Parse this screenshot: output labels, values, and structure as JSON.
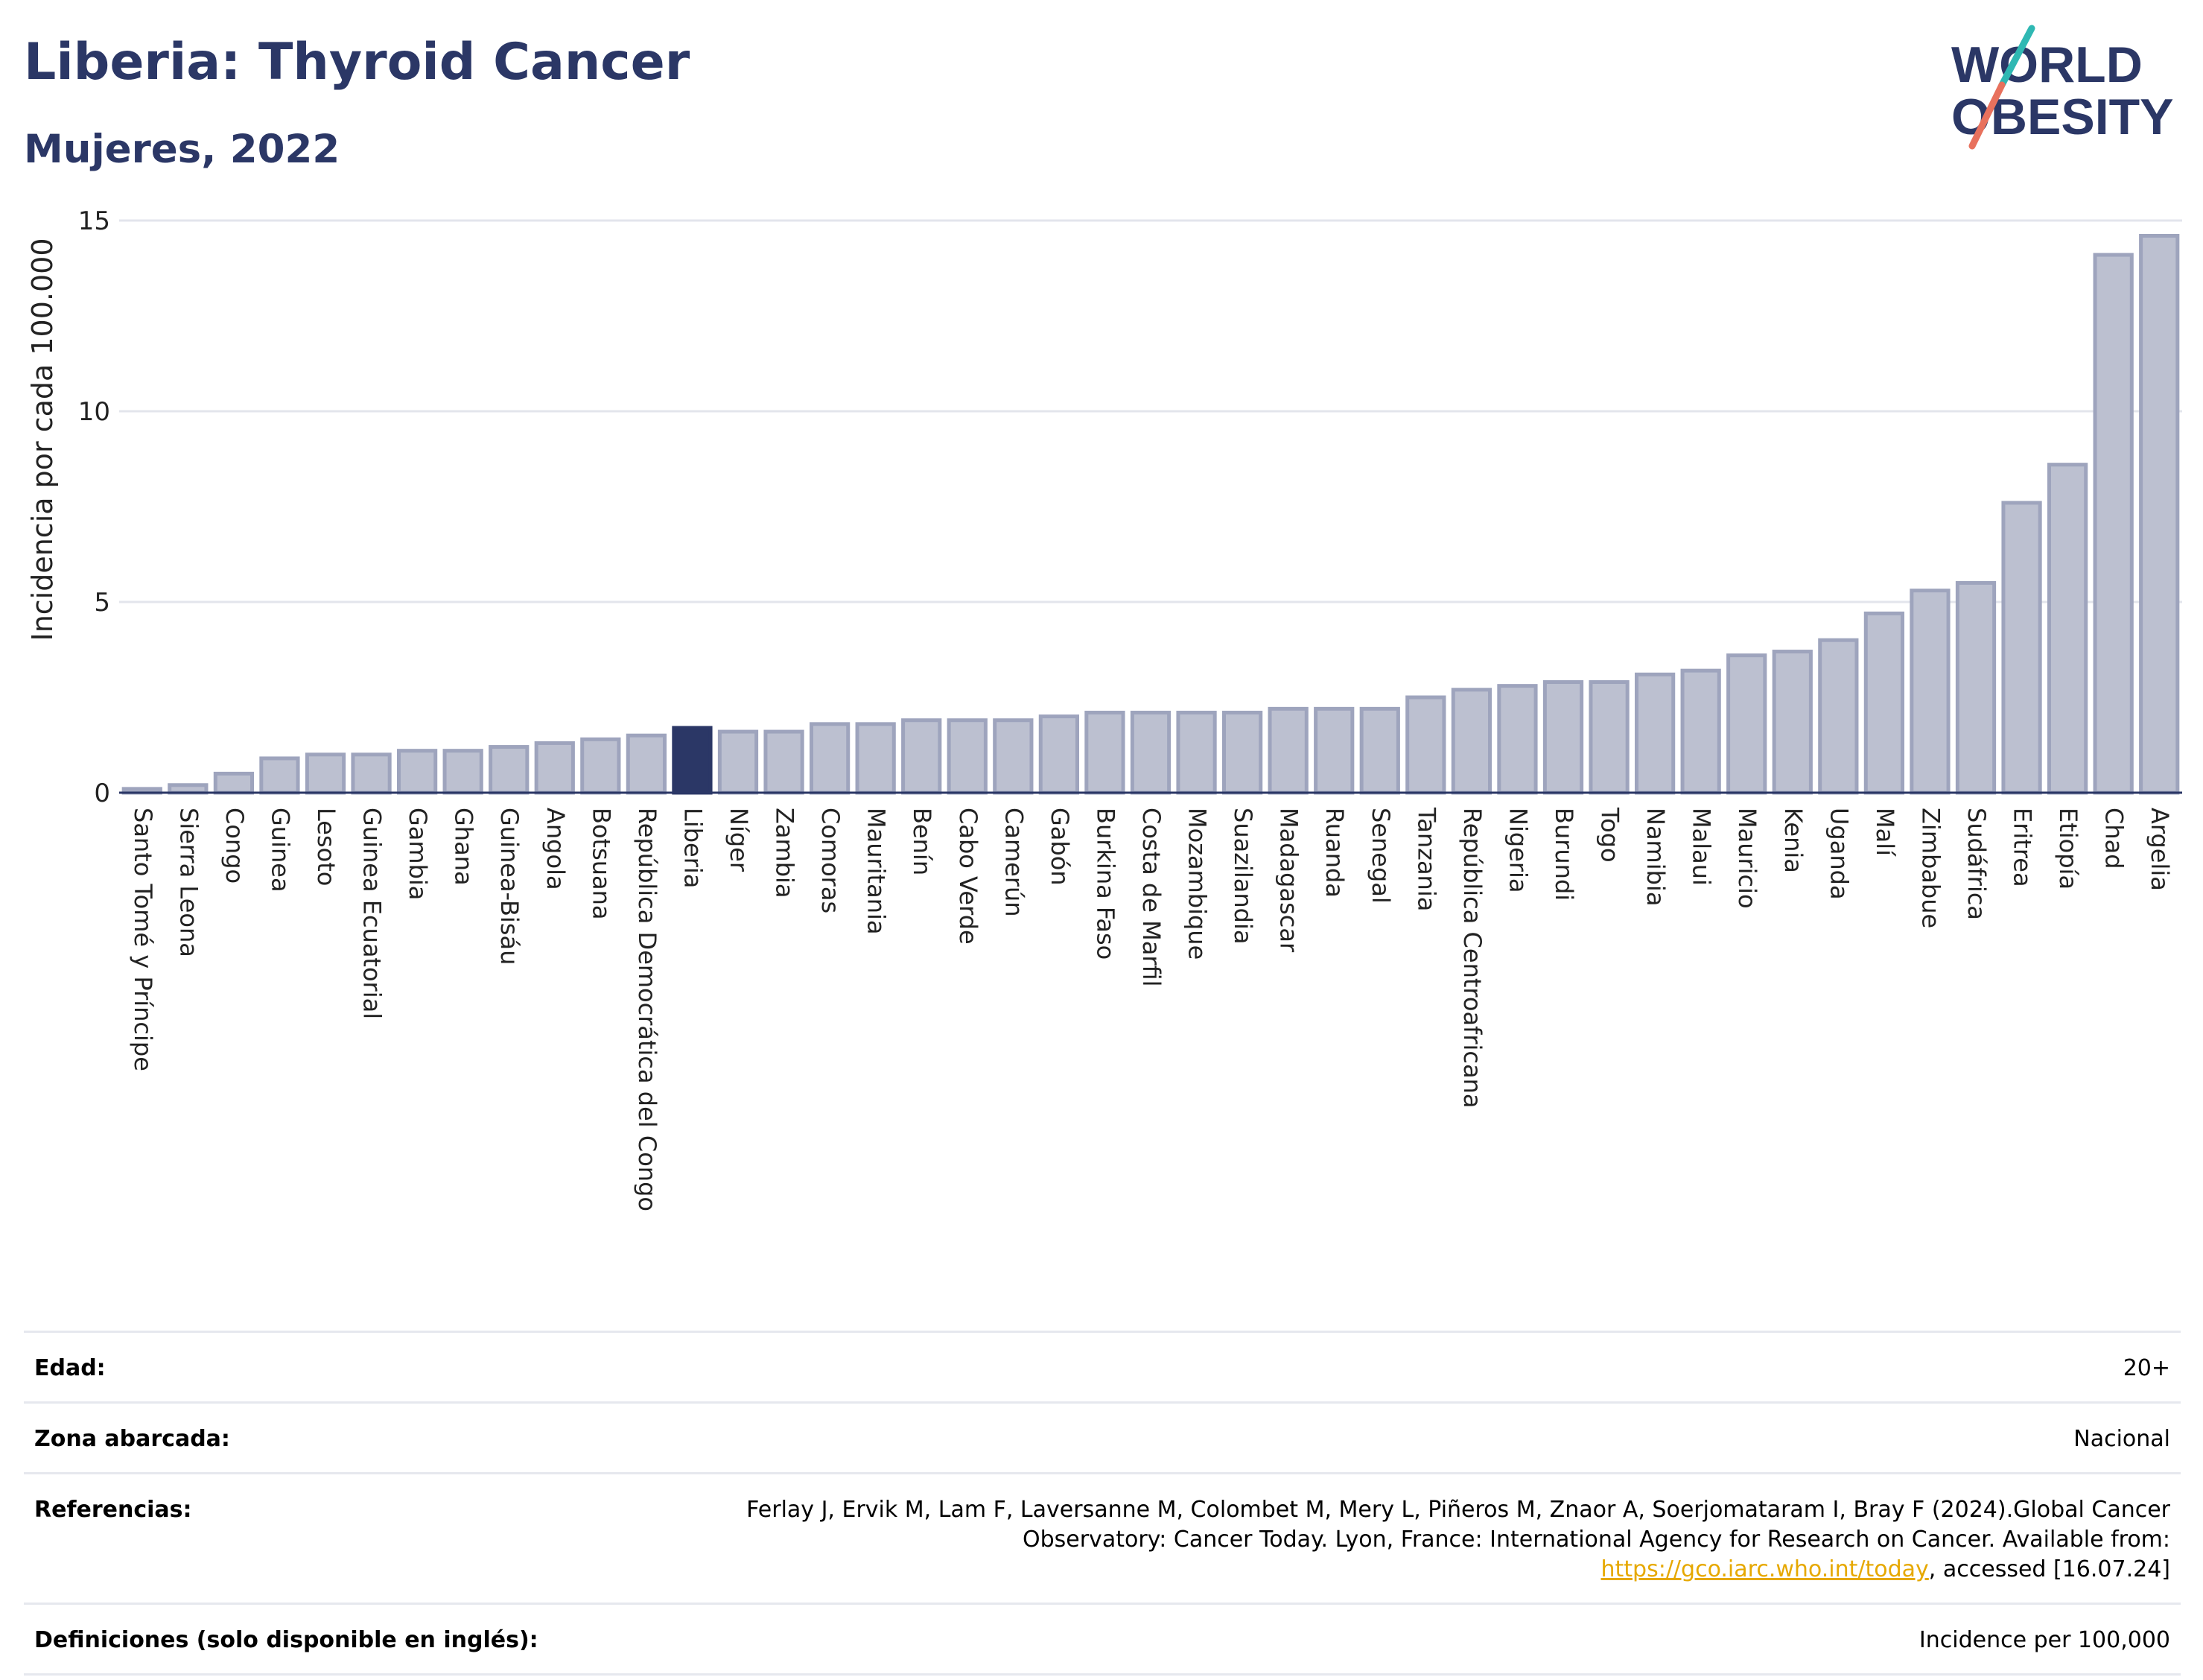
{
  "header": {
    "title": "Liberia: Thyroid Cancer",
    "subtitle": "Mujeres, 2022"
  },
  "logo": {
    "line1": "WORLD",
    "line2": "OBESITY"
  },
  "colors": {
    "highlight": "#2b3766",
    "bar_fill": "#bcc0d0",
    "bar_stroke": "#9ea4bd",
    "brand_teal": "#2fb8b3",
    "brand_coral": "#e8715d"
  },
  "chart_data": {
    "type": "bar",
    "ylabel": "Incidencia por cada 100.000",
    "xlabel": "",
    "ylim": [
      0,
      15
    ],
    "yticks": [
      0,
      5,
      10,
      15
    ],
    "grid": true,
    "highlight": "Liberia",
    "categories": [
      "Santo Tomé y Príncipe",
      "Sierra Leona",
      "Congo",
      "Guinea",
      "Lesoto",
      "Guinea Ecuatorial",
      "Gambia",
      "Ghana",
      "Guinea-Bisáu",
      "Angola",
      "Botsuana",
      "República Democrática del Congo",
      "Liberia",
      "Níger",
      "Zambia",
      "Comoras",
      "Mauritania",
      "Benín",
      "Cabo Verde",
      "Camerún",
      "Gabón",
      "Burkina Faso",
      "Costa de Marfil",
      "Mozambique",
      "Suazilandia",
      "Madagascar",
      "Ruanda",
      "Senegal",
      "Tanzania",
      "República Centroafricana",
      "Nigeria",
      "Burundi",
      "Togo",
      "Namibia",
      "Malaui",
      "Mauricio",
      "Kenia",
      "Uganda",
      "Malí",
      "Zimbabue",
      "Sudáfrica",
      "Eritrea",
      "Etiopía",
      "Chad",
      "Argelia"
    ],
    "values": [
      0.1,
      0.2,
      0.5,
      0.9,
      1.0,
      1.0,
      1.1,
      1.1,
      1.2,
      1.3,
      1.4,
      1.5,
      1.7,
      1.6,
      1.6,
      1.8,
      1.8,
      1.9,
      1.9,
      1.9,
      2.0,
      2.1,
      2.1,
      2.1,
      2.1,
      2.2,
      2.2,
      2.2,
      2.5,
      2.7,
      2.8,
      2.9,
      2.9,
      3.1,
      3.2,
      3.6,
      3.7,
      4.0,
      4.7,
      5.3,
      5.5,
      7.6,
      8.6,
      14.1,
      14.6
    ]
  },
  "meta": {
    "age_label": "Edad:",
    "age_value": "20+",
    "zone_label": "Zona abarcada:",
    "zone_value": "Nacional",
    "refs_label": "Referencias:",
    "refs_text1": "Ferlay J, Ervik M, Lam F, Laversanne M, Colombet M, Mery L, Piñeros M, Znaor A, Soerjomataram I, Bray F (2024).Global Cancer Observatory: Cancer Today. Lyon, France: International Agency for Research on Cancer. Available from: ",
    "refs_link": "https://gco.iarc.who.int/today",
    "refs_text2": ", accessed [16.07.24]",
    "defs_label": "Definiciones (solo disponible en inglés):",
    "defs_value": "Incidence per 100,000"
  }
}
